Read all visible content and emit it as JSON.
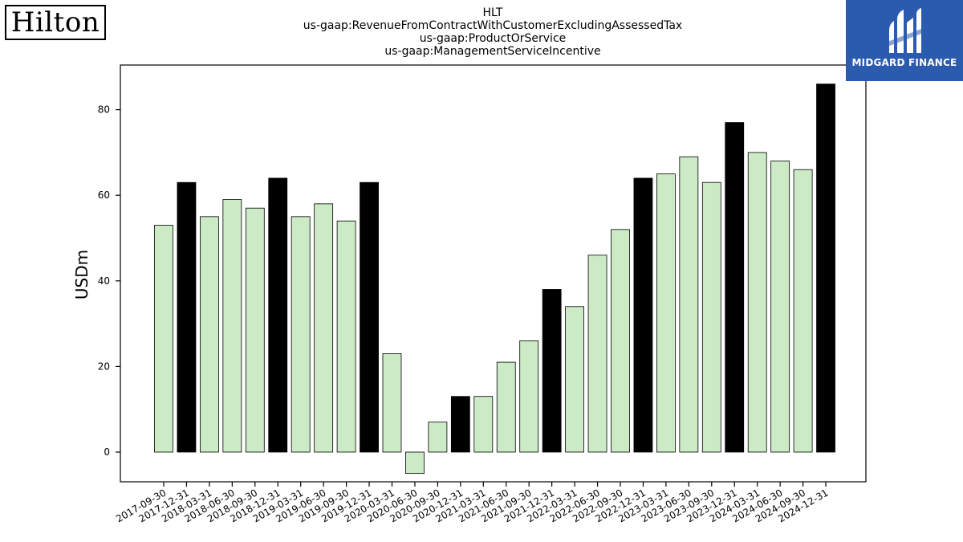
{
  "branding": {
    "left_logo_text": "Hilton",
    "right_logo_text": "MIDGARD FINANCE",
    "right_logo_bg": "#2B5BAF"
  },
  "chart_data": {
    "type": "bar",
    "title_lines": [
      "HLT",
      "us-gaap:RevenueFromContractWithCustomerExcludingAssessedTax",
      "us-gaap:ProductOrService",
      "us-gaap:ManagementServiceIncentive"
    ],
    "xlabel": "",
    "ylabel": "USDm",
    "ylim": [
      -7,
      90
    ],
    "yticks": [
      0,
      20,
      40,
      60,
      80
    ],
    "grid": false,
    "categories": [
      "2017-09-30",
      "2017-12-31",
      "2018-03-31",
      "2018-06-30",
      "2018-09-30",
      "2018-12-31",
      "2019-03-31",
      "2019-06-30",
      "2019-09-30",
      "2019-12-31",
      "2020-03-31",
      "2020-06-30",
      "2020-09-30",
      "2020-12-31",
      "2021-03-31",
      "2021-06-30",
      "2021-09-30",
      "2021-12-31",
      "2022-03-31",
      "2022-06-30",
      "2022-09-30",
      "2022-12-31",
      "2023-03-31",
      "2023-06-30",
      "2023-09-30",
      "2023-12-31",
      "2024-03-31",
      "2024-06-30",
      "2024-09-30",
      "2024-12-31"
    ],
    "values": [
      53,
      63,
      55,
      59,
      57,
      64,
      55,
      58,
      54,
      63,
      23,
      -5,
      7,
      13,
      13,
      21,
      26,
      38,
      34,
      46,
      52,
      64,
      65,
      69,
      63,
      77,
      70,
      68,
      66,
      86
    ],
    "q4_highlight": [
      false,
      true,
      false,
      false,
      false,
      true,
      false,
      false,
      false,
      true,
      false,
      false,
      false,
      true,
      false,
      false,
      false,
      true,
      false,
      false,
      false,
      true,
      false,
      false,
      false,
      true,
      false,
      false,
      false,
      true
    ],
    "colors": {
      "quarter_bar": "#CDEAC6",
      "year_end_bar": "#000000",
      "bar_edge": "#000000"
    }
  }
}
